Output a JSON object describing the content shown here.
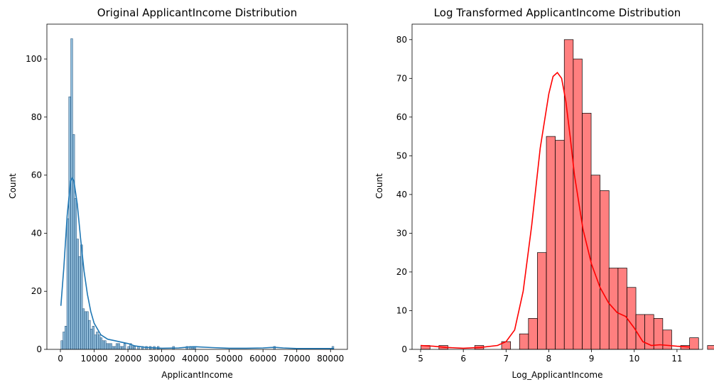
{
  "chart_data": [
    {
      "type": "histogram",
      "title": "Original ApplicantIncome Distribution",
      "xlabel": "ApplicantIncome",
      "ylabel": "Count",
      "xlim": [
        -4000,
        85000
      ],
      "ylim": [
        0,
        112
      ],
      "xticks": [
        0,
        10000,
        20000,
        30000,
        40000,
        50000,
        60000,
        70000,
        80000
      ],
      "yticks": [
        0,
        20,
        40,
        60,
        80,
        100
      ],
      "bar_color": "#1f77b4",
      "bin_start": 150,
      "bin_width": 582,
      "counts": [
        3,
        6,
        8,
        45,
        87,
        107,
        74,
        52,
        38,
        32,
        36,
        14,
        13,
        13,
        10,
        7,
        8,
        5,
        6,
        5,
        4,
        3,
        3,
        2,
        2,
        2,
        1,
        1,
        2,
        2,
        1,
        1,
        2,
        0,
        1,
        2,
        1,
        1,
        0,
        1,
        0,
        1,
        0,
        1,
        0,
        1,
        0,
        1,
        0,
        1,
        0,
        0,
        0,
        0,
        0,
        0,
        0,
        0,
        0,
        0,
        0,
        0,
        0,
        0,
        0,
        0,
        0,
        0,
        0,
        0,
        0,
        0,
        0,
        0,
        0,
        0,
        0,
        0,
        0,
        0,
        0,
        0,
        0,
        0,
        0,
        0,
        0,
        0,
        0,
        0,
        0,
        0,
        0,
        0,
        0,
        0,
        0,
        0,
        0,
        0,
        0,
        0,
        0,
        0,
        0,
        0,
        0,
        0,
        0,
        0,
        0,
        0,
        0,
        0,
        0,
        0,
        0,
        0,
        0,
        0,
        0,
        0,
        0,
        0,
        0,
        0,
        0,
        0,
        0,
        0,
        0,
        0,
        0,
        0,
        0,
        0,
        0,
        0,
        0,
        0
      ],
      "sparse_bars": [
        [
          33500,
          1
        ],
        [
          37500,
          1
        ],
        [
          38500,
          1
        ],
        [
          39300,
          1
        ],
        [
          39800,
          1
        ],
        [
          63400,
          1
        ],
        [
          80700,
          1
        ]
      ],
      "kde_x": [
        150,
        1000,
        2000,
        3000,
        3500,
        4000,
        5000,
        6000,
        7000,
        8000,
        9000,
        10000,
        12000,
        14000,
        16000,
        18000,
        20000,
        22000,
        25000,
        30000,
        35000,
        38000,
        40000,
        45000,
        50000,
        55000,
        60000,
        63400,
        66000,
        70000,
        75000,
        81000
      ],
      "kde_y": [
        15,
        28,
        46,
        58,
        59,
        58,
        50,
        38,
        27,
        19,
        13,
        9,
        5,
        3.5,
        3,
        2.5,
        2,
        1.2,
        0.7,
        0.4,
        0.5,
        0.8,
        0.9,
        0.6,
        0.4,
        0.4,
        0.5,
        0.7,
        0.5,
        0.3,
        0.3,
        0.3
      ]
    },
    {
      "type": "histogram",
      "title": "Log Transformed ApplicantIncome Distribution",
      "xlabel": "Log_ApplicantIncome",
      "ylabel": "Count",
      "xlim": [
        4.8,
        11.6
      ],
      "ylim": [
        0,
        84
      ],
      "xticks": [
        5,
        6,
        7,
        8,
        9,
        10,
        11
      ],
      "yticks": [
        0,
        10,
        20,
        30,
        40,
        50,
        60,
        70,
        80
      ],
      "bar_color": "#ff0000",
      "bin_start": 5.01,
      "bin_width": 0.2095,
      "counts": [
        1,
        0,
        1,
        0,
        0,
        0,
        1,
        0,
        0,
        2,
        0,
        4,
        8,
        25,
        55,
        54,
        80,
        75,
        61,
        45,
        41,
        21,
        21,
        16,
        9,
        9,
        8,
        5,
        0,
        1,
        3,
        0,
        1,
        1
      ],
      "kde_x": [
        5.0,
        5.3,
        5.6,
        6.0,
        6.4,
        6.8,
        7.0,
        7.2,
        7.4,
        7.6,
        7.8,
        8.0,
        8.1,
        8.2,
        8.3,
        8.4,
        8.5,
        8.6,
        8.8,
        9.0,
        9.2,
        9.4,
        9.6,
        9.8,
        10.0,
        10.2,
        10.4,
        10.6,
        10.8,
        11.0,
        11.3
      ],
      "kde_y": [
        1.0,
        0.8,
        0.5,
        0.3,
        0.5,
        1.0,
        2.0,
        5.0,
        15.0,
        32.0,
        52.0,
        66.0,
        70.5,
        71.5,
        70.0,
        64.0,
        55.0,
        45.0,
        31.0,
        22.0,
        16.0,
        12.0,
        9.5,
        8.5,
        5.5,
        2.0,
        1.0,
        1.2,
        1.0,
        0.8,
        0.6
      ]
    }
  ]
}
